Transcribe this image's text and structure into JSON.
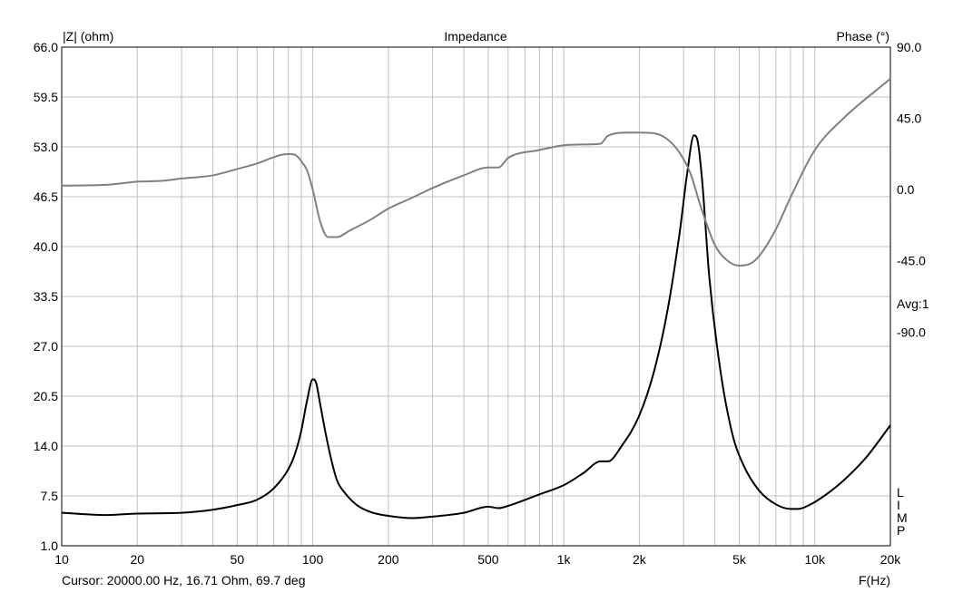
{
  "chart_data": {
    "type": "line",
    "title": "Impedance",
    "ylabel_left": "|Z| (ohm)",
    "ylabel_right": "Phase (°)",
    "xlabel": "F(Hz)",
    "x_scale": "log",
    "xlim": [
      10,
      20000
    ],
    "ylim_left": [
      1.0,
      66.0
    ],
    "ylim_right": [
      -225.0,
      90.0
    ],
    "x_tick_labels": [
      {
        "x": 10,
        "label": "10"
      },
      {
        "x": 20,
        "label": "20"
      },
      {
        "x": 50,
        "label": "50"
      },
      {
        "x": 100,
        "label": "100"
      },
      {
        "x": 200,
        "label": "200"
      },
      {
        "x": 500,
        "label": "500"
      },
      {
        "x": 1000,
        "label": "1k"
      },
      {
        "x": 2000,
        "label": "2k"
      },
      {
        "x": 5000,
        "label": "5k"
      },
      {
        "x": 10000,
        "label": "10k"
      },
      {
        "x": 20000,
        "label": "20k"
      }
    ],
    "y_left_ticks": [
      "66.0",
      "59.5",
      "53.0",
      "46.5",
      "40.0",
      "33.5",
      "27.0",
      "20.5",
      "14.0",
      "7.5",
      "1.0"
    ],
    "y_right_ticks": [
      "90.0",
      "45.0",
      "0.0",
      "-45.0",
      "-90.0"
    ],
    "avg_label": "Avg:1",
    "limp_label": [
      "L",
      "I",
      "M",
      "P"
    ],
    "grid": true,
    "series": [
      {
        "color": "#000000",
        "axis": "left",
        "x": [
          10,
          15,
          20,
          30,
          40,
          50,
          60,
          70,
          80,
          85,
          90,
          95,
          100,
          103,
          107,
          112,
          118,
          125,
          135,
          150,
          170,
          200,
          250,
          300,
          400,
          500,
          550,
          600,
          800,
          1000,
          1200,
          1400,
          1500,
          1700,
          2000,
          2300,
          2600,
          2900,
          3100,
          3300,
          3400,
          3550,
          3800,
          4200,
          4700,
          5200,
          6000,
          7000,
          8000,
          8600,
          9500,
          11000,
          13000,
          16000,
          20000
        ],
        "y": [
          5.3,
          5.0,
          5.2,
          5.3,
          5.7,
          6.3,
          7.0,
          8.5,
          11.0,
          13.0,
          16.0,
          20.0,
          22.7,
          22.3,
          19.5,
          16.0,
          12.5,
          9.5,
          7.8,
          6.3,
          5.4,
          4.9,
          4.6,
          4.8,
          5.3,
          6.1,
          5.9,
          6.2,
          7.7,
          8.9,
          10.5,
          12.0,
          12.0,
          14.0,
          18.0,
          24.0,
          32.0,
          42.0,
          49.5,
          54.5,
          54.0,
          49.0,
          36.0,
          24.0,
          15.5,
          11.5,
          8.2,
          6.4,
          5.8,
          5.8,
          6.3,
          7.6,
          9.5,
          12.5,
          16.7
        ]
      },
      {
        "color": "#808080",
        "axis": "right",
        "x": [
          10,
          15,
          20,
          25,
          30,
          40,
          50,
          60,
          70,
          75,
          80,
          85,
          90,
          95,
          100,
          107,
          115,
          125,
          140,
          170,
          200,
          250,
          300,
          400,
          500,
          550,
          600,
          800,
          1000,
          1200,
          1400,
          1500,
          1800,
          2000,
          2300,
          2600,
          2900,
          3200,
          3500,
          4000,
          4500,
          5000,
          5500,
          6000,
          7000,
          8000,
          10000,
          13000,
          20000
        ],
        "y": [
          2.5,
          3.0,
          5.0,
          5.5,
          7.0,
          9.0,
          13.0,
          16.5,
          20.5,
          22.0,
          22.5,
          22.0,
          18.0,
          12.0,
          0.0,
          -20.0,
          -30.0,
          -30.0,
          -26.0,
          -19.0,
          -12.0,
          -5.0,
          1.0,
          9.0,
          14.0,
          14.0,
          20.0,
          25.0,
          28.0,
          28.5,
          29.0,
          34.0,
          36.0,
          36.0,
          35.5,
          31.5,
          23.0,
          10.0,
          -10.0,
          -35.0,
          -45.0,
          -48.0,
          -47.0,
          -42.0,
          -25.0,
          -5.0,
          25.0,
          45.0,
          70.0
        ]
      }
    ]
  },
  "footer": {
    "cursor_text": "Cursor: 20000.00 Hz, 16.71 Ohm, 69.7 deg",
    "freq_label": "F(Hz)"
  }
}
